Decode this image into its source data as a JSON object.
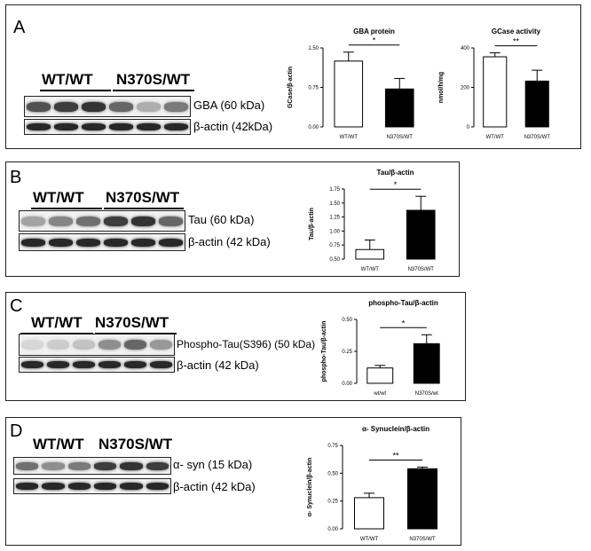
{
  "panels": [
    {
      "letter": "A",
      "groups": [
        "WT/WT",
        "N370S/WT"
      ],
      "blot_labels": [
        "GBA (60 kDa)",
        "β-actin (42kDa)"
      ],
      "band_intensities": [
        [
          0.75,
          0.85,
          0.9,
          0.65,
          0.3,
          0.55
        ],
        [
          0.95,
          0.95,
          0.95,
          0.95,
          0.95,
          0.95
        ]
      ],
      "chart_data": [
        {
          "type": "bar",
          "title": "GBA protein",
          "ylabel": "GCase/β-actin",
          "categories": [
            "WT/WT",
            "N370S/WT"
          ],
          "values": [
            1.25,
            0.72
          ],
          "errors": [
            0.17,
            0.2
          ],
          "ylim": [
            0,
            1.5
          ],
          "yticks": [
            "0.00",
            "0.75",
            "1.50"
          ],
          "ytick_values": [
            0,
            0.75,
            1.5
          ],
          "significance": "*",
          "colors": [
            "#ffffff",
            "#000000"
          ]
        },
        {
          "type": "bar",
          "title": "GCase activity",
          "ylabel": "nmol/h/mg",
          "categories": [
            "WT/WT",
            "N370S/WT"
          ],
          "values": [
            355,
            232
          ],
          "errors": [
            20,
            55
          ],
          "ylim": [
            0,
            400
          ],
          "yticks": [
            "0",
            "200",
            "400"
          ],
          "ytick_values": [
            0,
            200,
            400
          ],
          "significance": "**",
          "colors": [
            "#ffffff",
            "#000000"
          ]
        }
      ]
    },
    {
      "letter": "B",
      "groups": [
        "WT/WT",
        "N370S/WT"
      ],
      "blot_labels": [
        "Tau (60 kDa)",
        "β-actin (42 kDa)"
      ],
      "band_intensities": [
        [
          0.35,
          0.5,
          0.6,
          0.85,
          0.9,
          0.65
        ],
        [
          0.95,
          0.95,
          0.95,
          0.95,
          0.95,
          0.95
        ]
      ],
      "chart_data": [
        {
          "type": "bar",
          "title": "Tau/β-actin",
          "ylabel": "Tau/β-actin",
          "categories": [
            "WT/WT",
            "N370S/WT"
          ],
          "values": [
            0.67,
            1.37
          ],
          "errors": [
            0.17,
            0.25
          ],
          "ylim": [
            0.5,
            1.75
          ],
          "yticks": [
            "0.50",
            "0.75",
            "1.00",
            "1.25",
            "1.50",
            "1.75"
          ],
          "ytick_values": [
            0.5,
            0.75,
            1.0,
            1.25,
            1.5,
            1.75
          ],
          "significance": "*",
          "colors": [
            "#ffffff",
            "#000000"
          ]
        }
      ]
    },
    {
      "letter": "C",
      "groups": [
        "WT/WT",
        "N370S/WT"
      ],
      "blot_labels": [
        "Phospho-Tau(S396)  (50 kDa)",
        "β-actin (42 kDa)"
      ],
      "band_intensities": [
        [
          0.1,
          0.15,
          0.2,
          0.45,
          0.65,
          0.4
        ],
        [
          0.95,
          0.95,
          0.95,
          0.95,
          0.95,
          0.95
        ]
      ],
      "chart_data": [
        {
          "type": "bar",
          "title": "phospho-Tau/β-actin",
          "ylabel": "phospho-Tau/β-actin",
          "categories": [
            "wt/wt",
            "N370S/wt"
          ],
          "values": [
            0.12,
            0.31
          ],
          "errors": [
            0.02,
            0.07
          ],
          "ylim": [
            0,
            0.5
          ],
          "yticks": [
            "0.00",
            "0.25",
            "0.50"
          ],
          "ytick_values": [
            0,
            0.25,
            0.5
          ],
          "significance": "*",
          "colors": [
            "#ffffff",
            "#000000"
          ]
        }
      ]
    },
    {
      "letter": "D",
      "groups": [
        "WT/WT",
        "N370S/WT"
      ],
      "blot_labels": [
        "α- syn (15 kDa)",
        "β-actin (42 kDa)"
      ],
      "band_intensities": [
        [
          0.6,
          0.45,
          0.55,
          0.85,
          0.9,
          0.85
        ],
        [
          0.95,
          0.95,
          0.95,
          0.95,
          0.95,
          0.95
        ]
      ],
      "chart_data": [
        {
          "type": "bar",
          "title": "α- Synuclein/β-actin",
          "ylabel": "α- Synuclein/β-actin",
          "categories": [
            "WT/WT",
            "N370S/WT"
          ],
          "values": [
            0.28,
            0.54
          ],
          "errors": [
            0.04,
            0.015
          ],
          "ylim": [
            0,
            0.75
          ],
          "yticks": [
            "0.00",
            "0.25",
            "0.50",
            "0.75"
          ],
          "ytick_values": [
            0,
            0.25,
            0.5,
            0.75
          ],
          "significance": "**",
          "colors": [
            "#ffffff",
            "#000000"
          ]
        }
      ]
    }
  ]
}
